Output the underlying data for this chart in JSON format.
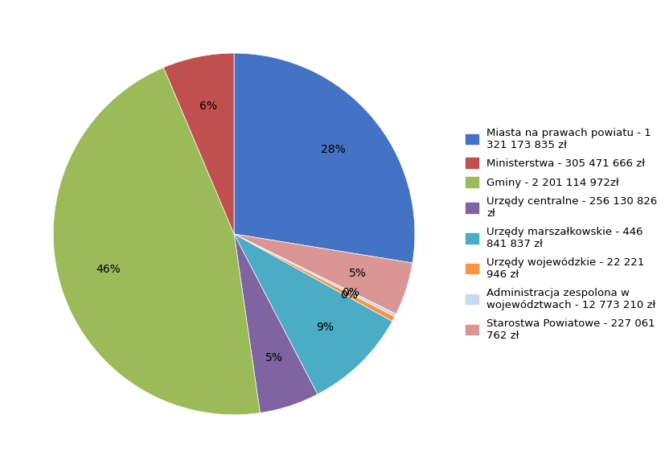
{
  "labels": [
    "Miasta na prawach powiatu - 1\n321 173 835 zł",
    "Ministerstwa - 305 471 666 zł",
    "Gminy - 2 201 114 972zł",
    "Urzędy centralne - 256 130 826\nzł",
    "Urzędy marszałkowskie - 446\n841 837 zł",
    "Urzędy wojewódzkie - 22 221\n946 zł",
    "Administracja zespolona w\nwojewództwach - 12 773 210 zł",
    "Starostwa Powiatowe - 227 061\n762 zł"
  ],
  "legend_labels": [
    "Miasta na prawach powiatu - 1\n321 173 835 zł",
    "Ministerstwa - 305 471 666 zł",
    "Gminy - 2 201 114 972zł",
    "Urzędy centralne - 256 130 826\nzł",
    "Urzędy marszałkowskie - 446\n841 837 zł",
    "Urzędy wojewódzkie - 22 221\n946 zł",
    "Administracja zespolona w\nwojewództwach - 12 773 210 zł",
    "Starostwa Powiatowe - 227 061\n762 zł"
  ],
  "values": [
    1321173835,
    305471666,
    2201114972,
    256130826,
    446841837,
    22221946,
    12773210,
    227061762
  ],
  "colors": [
    "#4472C4",
    "#C0504D",
    "#9BBB59",
    "#8064A2",
    "#4BACC6",
    "#F79646",
    "#C6D9F0",
    "#D99694"
  ],
  "legend_colors": [
    "#4472C4",
    "#C0504D",
    "#9BBB59",
    "#8064A2",
    "#4BACC6",
    "#F79646",
    "#C6D9F0",
    "#D99694"
  ],
  "pct_labels": [
    "28%",
    "6%",
    "46%",
    "5%",
    "9%",
    "0%",
    "0%",
    "5%"
  ],
  "background_color": "#FFFFFF",
  "legend_fontsize": 9.5
}
